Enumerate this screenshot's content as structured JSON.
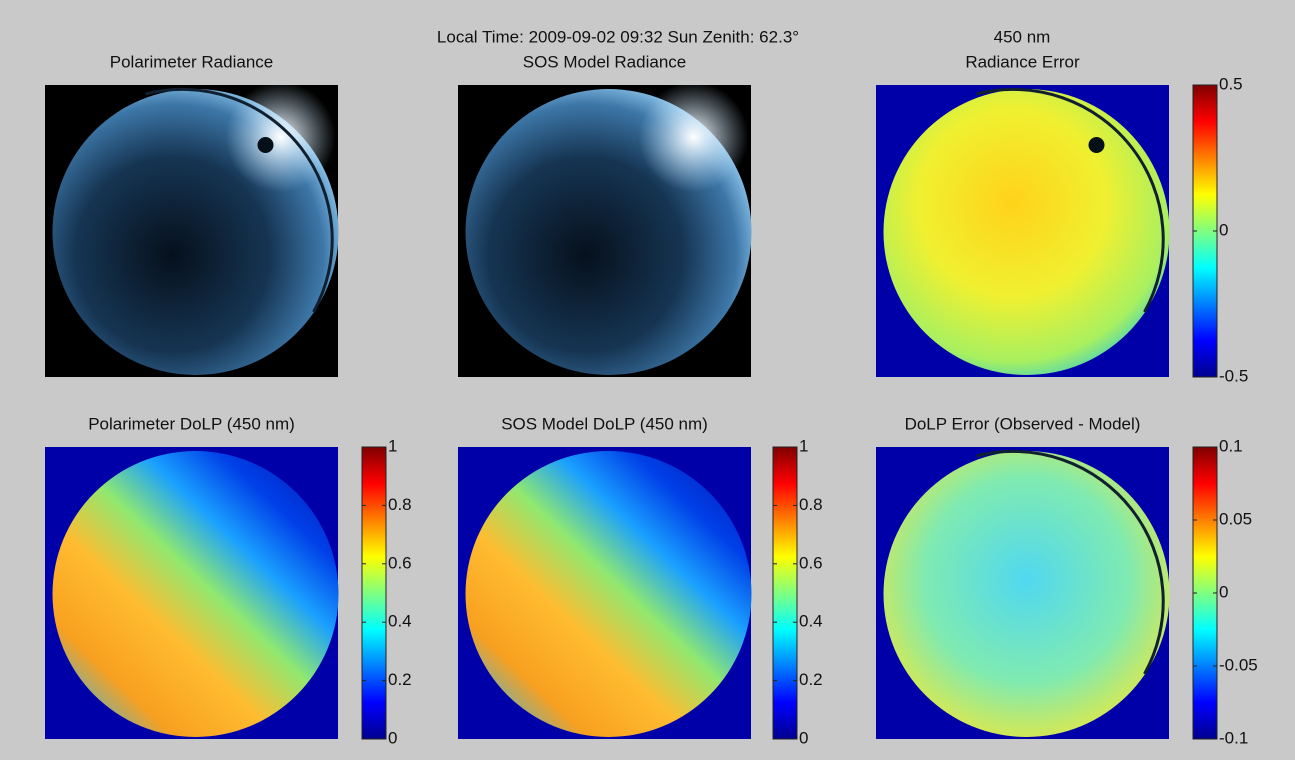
{
  "header": {
    "time": "Local Time:  2009-09-02 09:32  Sun Zenith: 62.3°",
    "wavelength": "450 nm"
  },
  "panels": [
    {
      "title": "Polarimeter Radiance"
    },
    {
      "title": "SOS Model Radiance"
    },
    {
      "title": "Radiance Error",
      "colorbar": {
        "lim": [
          -0.5,
          0.5
        ],
        "ticks": [
          -0.5,
          0,
          0.5
        ]
      }
    },
    {
      "title": "Polarimeter DoLP (450 nm)",
      "colorbar": {
        "lim": [
          0,
          1
        ],
        "ticks": [
          0,
          0.2,
          0.4,
          0.6,
          0.8,
          1
        ]
      }
    },
    {
      "title": "SOS Model DoLP (450 nm)",
      "colorbar": {
        "lim": [
          0,
          1
        ],
        "ticks": [
          0,
          0.2,
          0.4,
          0.6,
          0.8,
          1
        ]
      }
    },
    {
      "title": "DoLP Error (Observed - Model)",
      "colorbar": {
        "lim": [
          -0.1,
          0.1
        ],
        "ticks": [
          -0.1,
          -0.05,
          0,
          0.05,
          0.1
        ]
      }
    }
  ]
}
